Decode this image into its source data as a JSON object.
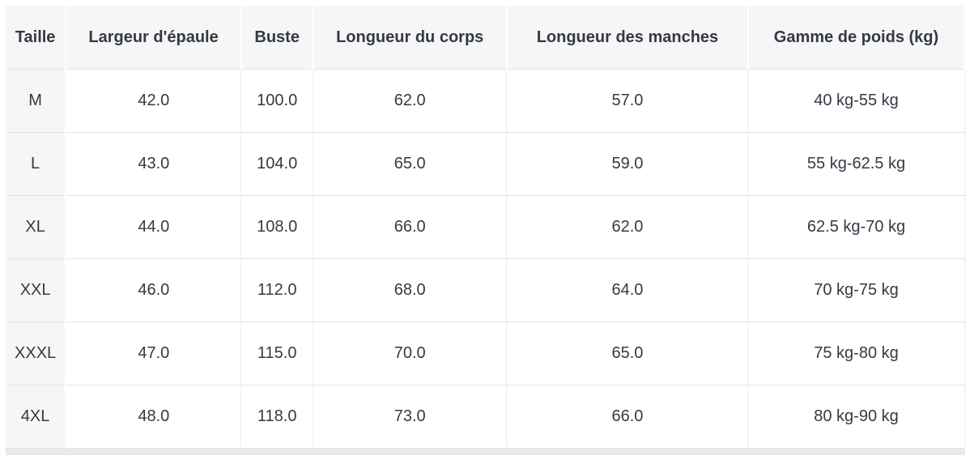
{
  "chart_data": {
    "type": "table",
    "columns": [
      "Taille",
      "Largeur d'épaule",
      "Buste",
      "Longueur du corps",
      "Longueur des manches",
      "Gamme de poids (kg)"
    ],
    "rows": [
      [
        "M",
        "42.0",
        "100.0",
        "62.0",
        "57.0",
        "40 kg-55 kg"
      ],
      [
        "L",
        "43.0",
        "104.0",
        "65.0",
        "59.0",
        "55 kg-62.5 kg"
      ],
      [
        "XL",
        "44.0",
        "108.0",
        "66.0",
        "62.0",
        "62.5 kg-70 kg"
      ],
      [
        "XXL",
        "46.0",
        "112.0",
        "68.0",
        "64.0",
        "70 kg-75 kg"
      ],
      [
        "XXXL",
        "47.0",
        "115.0",
        "70.0",
        "65.0",
        "75 kg-80 kg"
      ],
      [
        "4XL",
        "48.0",
        "118.0",
        "73.0",
        "66.0",
        "80 kg-90 kg"
      ]
    ],
    "layout_hints": {
      "column_width_percent": [
        6.2,
        18.1,
        7.4,
        20.0,
        24.9,
        22.3
      ],
      "header_align": "center",
      "cell_align": "center"
    }
  },
  "colors": {
    "header_bg": "#f6f6f7",
    "first_col_bg": "#f6f6f7",
    "row_border": "#e3e3e5",
    "col_border": "#ededee",
    "text": "#333a46",
    "cell_bg": "#ffffff",
    "bottom_band": "#e9e9eb"
  }
}
